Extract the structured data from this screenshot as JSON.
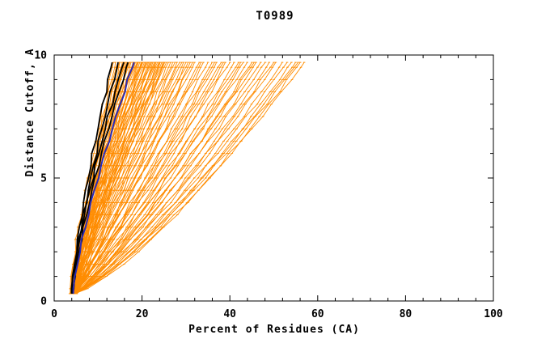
{
  "chart_data": {
    "type": "line",
    "title": "T0989",
    "xlabel": "Percent of Residues (CA)",
    "ylabel": "Distance Cutoff, A",
    "xlim": [
      0,
      100
    ],
    "ylim": [
      0,
      10
    ],
    "x_ticks": [
      0,
      20,
      40,
      60,
      80,
      100
    ],
    "x_minor_step": 4,
    "y_ticks": [
      0,
      5,
      10
    ],
    "y_minor_step": 1,
    "grid": false,
    "legend": "none",
    "curve_y_start": 0.3,
    "curve_y_end": 9.7,
    "curve_y_step": 0.5,
    "curve_model": "x(y) = x0 + (xf - x0) * ((y - y_start)/(y_end - y_start))^k ; each entry in params is [x0, xf, k]; x in percent of residues, y in Angstrom cutoff",
    "colors": {
      "models": "#ff8c00",
      "highlight_black": "#000000",
      "highlight_blue": "#2a2ab4",
      "frame": "#000000",
      "background": "#ffffff"
    },
    "series": [
      {
        "name": "model-curves",
        "color_key": "models",
        "width": 0.9,
        "markers": true,
        "params": [
          [
            3.8,
            13.5,
            1.33
          ],
          [
            4.2,
            14,
            1.28
          ],
          [
            3.6,
            14.5,
            1.36
          ],
          [
            4.5,
            15,
            1.25
          ],
          [
            4.0,
            15.5,
            1.31
          ],
          [
            4.8,
            16,
            1.22
          ],
          [
            3.7,
            16.5,
            1.34
          ],
          [
            4.3,
            17,
            1.27
          ],
          [
            5.0,
            17.5,
            1.2
          ],
          [
            3.9,
            18,
            1.3
          ],
          [
            4.6,
            18,
            1.24
          ],
          [
            4.1,
            18.5,
            1.32
          ],
          [
            4.9,
            19,
            1.21
          ],
          [
            3.8,
            19.5,
            1.28
          ],
          [
            4.4,
            20,
            1.18
          ],
          [
            5.1,
            20,
            1.25
          ],
          [
            4.0,
            20.5,
            1.15
          ],
          [
            4.7,
            21,
            1.22
          ],
          [
            3.6,
            21.5,
            1.12
          ],
          [
            4.2,
            22,
            1.19
          ],
          [
            4.9,
            22.5,
            1.1
          ],
          [
            4.5,
            23,
            1.16
          ],
          [
            3.9,
            23.5,
            1.08
          ],
          [
            5.2,
            24,
            1.14
          ],
          [
            4.1,
            24.5,
            1.05
          ],
          [
            4.6,
            25,
            1.12
          ],
          [
            3.7,
            25.5,
            1.03
          ],
          [
            4.3,
            26,
            1.09
          ],
          [
            5.0,
            27,
            1.0
          ],
          [
            4.0,
            27.5,
            1.07
          ],
          [
            4.7,
            28,
            0.98
          ],
          [
            4.2,
            29,
            1.05
          ],
          [
            4.8,
            30,
            0.96
          ],
          [
            3.8,
            30.5,
            1.02
          ],
          [
            4.4,
            31,
            0.94
          ],
          [
            5.1,
            32,
            1.0
          ],
          [
            4.0,
            33,
            0.92
          ],
          [
            4.6,
            34,
            0.98
          ],
          [
            4.2,
            35,
            0.9
          ],
          [
            4.9,
            36,
            0.96
          ],
          [
            3.9,
            37,
            0.88
          ],
          [
            4.5,
            38,
            0.94
          ],
          [
            5.0,
            39,
            0.86
          ],
          [
            4.1,
            40,
            0.92
          ],
          [
            4.7,
            41,
            0.85
          ],
          [
            4.3,
            42,
            0.9
          ],
          [
            4.8,
            43,
            0.83
          ],
          [
            3.9,
            44,
            0.88
          ],
          [
            4.4,
            45,
            0.82
          ],
          [
            5.1,
            46,
            0.86
          ],
          [
            4.0,
            47,
            0.8
          ],
          [
            4.6,
            48,
            0.84
          ],
          [
            4.2,
            49,
            0.79
          ],
          [
            4.8,
            50,
            0.82
          ],
          [
            4.3,
            52,
            0.78
          ],
          [
            4.9,
            53,
            0.8
          ],
          [
            4.5,
            54,
            0.76
          ],
          [
            4.0,
            55,
            0.78
          ],
          [
            4.6,
            56,
            0.74
          ],
          [
            4.2,
            57,
            0.76
          ],
          [
            4.1,
            14.8,
            1.3
          ],
          [
            4.6,
            15.8,
            1.26
          ],
          [
            3.9,
            16.2,
            1.33
          ],
          [
            4.4,
            17.2,
            1.24
          ],
          [
            5.0,
            18.2,
            1.29
          ],
          [
            4.2,
            18.8,
            1.22
          ],
          [
            4.7,
            19.2,
            1.27
          ],
          [
            3.8,
            19.8,
            1.2
          ],
          [
            4.3,
            20.2,
            1.25
          ],
          [
            4.8,
            20.8,
            1.17
          ],
          [
            4.0,
            21.2,
            1.23
          ],
          [
            4.5,
            21.8,
            1.14
          ],
          [
            5.1,
            22.2,
            1.2
          ],
          [
            4.1,
            22.8,
            1.11
          ],
          [
            4.6,
            23.2,
            1.17
          ],
          [
            3.9,
            23.8,
            1.08
          ],
          [
            4.4,
            24.2,
            1.13
          ],
          [
            4.9,
            24.8,
            1.06
          ],
          [
            4.2,
            25.2,
            1.1
          ],
          [
            4.7,
            26.5,
            1.04
          ],
          [
            4.0,
            28.5,
            1.06
          ],
          [
            4.5,
            29.5,
            0.99
          ],
          [
            5.0,
            31.5,
            1.01
          ],
          [
            4.1,
            33.5,
            0.95
          ],
          [
            4.6,
            36.5,
            0.92
          ],
          [
            4.3,
            38.5,
            0.89
          ],
          [
            4.8,
            42.5,
            0.86
          ],
          [
            4.0,
            45.5,
            0.83
          ],
          [
            4.5,
            50.5,
            0.8
          ],
          [
            4.2,
            55.5,
            0.77
          ]
        ]
      },
      {
        "name": "black-highlight-curves",
        "color_key": "highlight_black",
        "width": 1.8,
        "markers": false,
        "params": [
          [
            4.0,
            13.2,
            1.3
          ],
          [
            4.2,
            14.6,
            1.32
          ],
          [
            3.9,
            15.8,
            1.29
          ],
          [
            4.3,
            16.8,
            1.31
          ]
        ]
      },
      {
        "name": "blue-highlight-curve",
        "color_key": "highlight_blue",
        "width": 2.0,
        "markers": false,
        "params": [
          [
            4.3,
            18.2,
            1.3
          ]
        ]
      }
    ]
  }
}
